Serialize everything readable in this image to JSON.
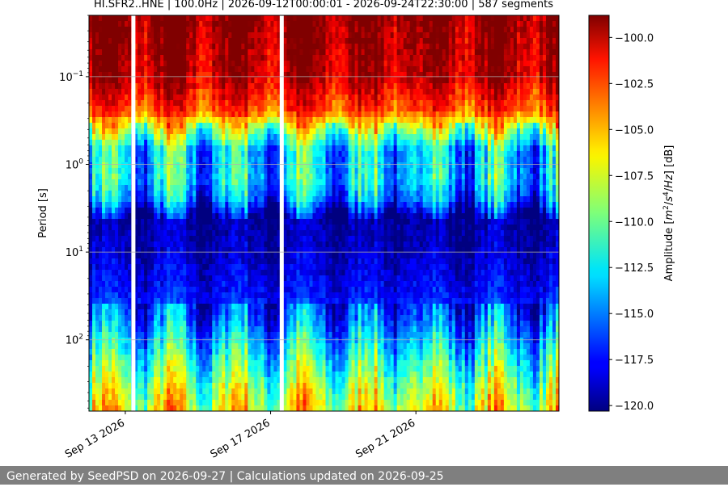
{
  "title": "HI.SFR2..HNE | 100.0Hz | 2026-09-12T00:00:01 - 2026-09-24T22:30:00 | 587 segments",
  "footer": "Generated by SeedPSD on 2026-09-27 | Calculations updated on 2026-09-25",
  "chart_data": {
    "type": "heatmap",
    "title": "HI.SFR2..HNE | 100.0Hz | 2026-09-12T00:00:01 - 2026-09-24T22:30:00 | 587 segments",
    "xlabel": "",
    "ylabel": "Period [s]",
    "x_range": [
      "2026-09-12T00:00:01",
      "2026-09-24T22:30:00"
    ],
    "x_ticks": [
      "Sep 13 2026",
      "Sep 17 2026",
      "Sep 21 2026"
    ],
    "y_scale": "log",
    "y_inverted": true,
    "y_range": [
      0.02,
      650
    ],
    "y_ticks": [
      {
        "value": 0.1,
        "label": "10−1",
        "base": "10",
        "exp": "−1"
      },
      {
        "value": 1,
        "label": "100",
        "base": "10",
        "exp": "0"
      },
      {
        "value": 10,
        "label": "101",
        "base": "10",
        "exp": "1"
      },
      {
        "value": 100,
        "label": "102",
        "base": "10",
        "exp": "2"
      }
    ],
    "grid": true,
    "colorbar": {
      "label_parts": [
        "Amplitude [",
        "m",
        "2",
        "/",
        "s",
        "4",
        "/",
        "Hz",
        "] [dB]"
      ],
      "range": [
        -120.3,
        -98.8
      ],
      "ticks": [
        "−100.0",
        "−102.5",
        "−105.0",
        "−107.5",
        "−110.0",
        "−112.5",
        "−115.0",
        "−117.5",
        "−120.0"
      ],
      "colormap": "jet"
    },
    "amplitude_profile": [
      {
        "period": 0.02,
        "db": -99.0
      },
      {
        "period": 0.1,
        "db": -100.0
      },
      {
        "period": 0.25,
        "db": -103.0
      },
      {
        "period": 0.4,
        "db": -108.5
      },
      {
        "period": 0.7,
        "db": -113.5
      },
      {
        "period": 1.5,
        "db": -113.0
      },
      {
        "period": 2.5,
        "db": -115.0
      },
      {
        "period": 4,
        "db": -119.5
      },
      {
        "period": 10,
        "db": -119.0
      },
      {
        "period": 30,
        "db": -117.5
      },
      {
        "period": 60,
        "db": -115.5
      },
      {
        "period": 150,
        "db": -112.0
      },
      {
        "period": 400,
        "db": -108.5
      },
      {
        "period": 650,
        "db": -107.0
      }
    ],
    "gaps": [
      "2026-09-13T04:00",
      "2026-09-17T06:00"
    ]
  }
}
